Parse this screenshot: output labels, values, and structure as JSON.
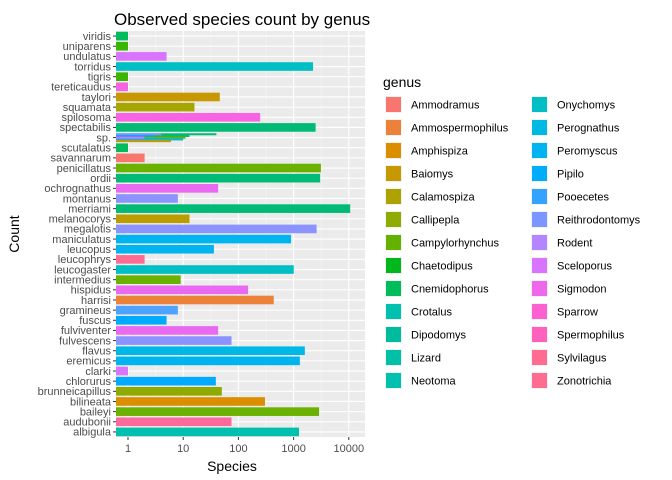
{
  "chart_data": {
    "type": "bar",
    "orientation": "horizontal",
    "title": "Observed species count by genus",
    "xlabel": "Species",
    "ylabel": "Count",
    "x_scale": "log10",
    "x_ticks": [
      "1",
      "10",
      "100",
      "1000",
      "10000"
    ],
    "xlim": [
      0.55,
      16000
    ],
    "grid": true,
    "legend_position": "right",
    "legend_title": "genus",
    "genera": [
      {
        "name": "Ammodramus",
        "color": "#F8766D"
      },
      {
        "name": "Ammospermophilus",
        "color": "#EC8239"
      },
      {
        "name": "Amphispiza",
        "color": "#DB8E00"
      },
      {
        "name": "Baiomys",
        "color": "#C79800"
      },
      {
        "name": "Calamospiza",
        "color": "#AEA200"
      },
      {
        "name": "Callipepla",
        "color": "#8FAA00"
      },
      {
        "name": "Campylorhynchus",
        "color": "#64B200"
      },
      {
        "name": "Chaetodipus",
        "color": "#00B81B"
      },
      {
        "name": "Cnemidophorus",
        "color": "#00BD5C"
      },
      {
        "name": "Crotalus",
        "color": "#00C0AF"
      },
      {
        "name": "Dipodomys",
        "color": "#00BC9F"
      },
      {
        "name": "Lizard",
        "color": "#00C1A7"
      },
      {
        "name": "Neotoma",
        "color": "#00C0AF"
      },
      {
        "name": "Onychomys",
        "color": "#00BFC4"
      },
      {
        "name": "Perognathus",
        "color": "#00B9E3"
      },
      {
        "name": "Peromyscus",
        "color": "#00B4EF"
      },
      {
        "name": "Pipilo",
        "color": "#00ADFA"
      },
      {
        "name": "Pooecetes",
        "color": "#35A2FF"
      },
      {
        "name": "Reithrodontomys",
        "color": "#7997FF"
      },
      {
        "name": "Rodent",
        "color": "#B385FF"
      },
      {
        "name": "Sceloporus",
        "color": "#D874FD"
      },
      {
        "name": "Sigmodon",
        "color": "#EF67EB"
      },
      {
        "name": "Sparrow",
        "color": "#FD61D1"
      },
      {
        "name": "Spermophilus",
        "color": "#FF62BC"
      },
      {
        "name": "Sylvilagus",
        "color": "#FF6C91"
      },
      {
        "name": "Zonotrichia",
        "color": "#FF6C91"
      }
    ],
    "categories": [
      "albigula",
      "audubonii",
      "baileyi",
      "bilineata",
      "brunneicapillus",
      "chlorurus",
      "clarki",
      "eremicus",
      "flavus",
      "fulvescens",
      "fulviventer",
      "fuscus",
      "gramineus",
      "harrisi",
      "hispidus",
      "intermedius",
      "leucogaster",
      "leucophrys",
      "leucopus",
      "maniculatus",
      "megalotis",
      "melanocorys",
      "merriami",
      "montanus",
      "ochrognathus",
      "ordii",
      "penicillatus",
      "savannarum",
      "scutalatus",
      "sp.",
      "spectabilis",
      "spilosoma",
      "squamata",
      "taylori",
      "tereticaudus",
      "tigris",
      "torridus",
      "undulatus",
      "uniparens",
      "viridis"
    ],
    "bars": [
      {
        "species": "albigula",
        "count": 1252,
        "genus": "Neotoma",
        "color": "#00BFAF"
      },
      {
        "species": "audubonii",
        "count": 75,
        "genus": "Sylvilagus",
        "color": "#FC6A9B"
      },
      {
        "species": "baileyi",
        "count": 2891,
        "genus": "Chaetodipus",
        "color": "#6BB100"
      },
      {
        "species": "bilineata",
        "count": 303,
        "genus": "Amphispiza",
        "color": "#DB8E00"
      },
      {
        "species": "brunneicapillus",
        "count": 50,
        "genus": "Campylorhynchus",
        "color": "#8FAA00"
      },
      {
        "species": "chlorurus",
        "count": 39,
        "genus": "Pipilo",
        "color": "#00ABFD"
      },
      {
        "species": "clarki",
        "count": 1,
        "genus": "Sceloporus",
        "color": "#D874FD"
      },
      {
        "species": "eremicus",
        "count": 1299,
        "genus": "Peromyscus",
        "color": "#00B4EF"
      },
      {
        "species": "flavus",
        "count": 1597,
        "genus": "Perognathus",
        "color": "#00B8E5"
      },
      {
        "species": "fulvescens",
        "count": 75,
        "genus": "Reithrodontomys",
        "color": "#8B93FF"
      },
      {
        "species": "fulviventer",
        "count": 43,
        "genus": "Sigmodon",
        "color": "#E96AF0"
      },
      {
        "species": "fuscus",
        "count": 5,
        "genus": "Pipilo",
        "color": "#00ABFD"
      },
      {
        "species": "gramineus",
        "count": 8,
        "genus": "Pooecetes",
        "color": "#4DA3FF"
      },
      {
        "species": "harrisi",
        "count": 437,
        "genus": "Ammospermophilus",
        "color": "#EC8239"
      },
      {
        "species": "hispidus",
        "count": 150,
        "genus": "Sigmodon",
        "color": "#E96AF0"
      },
      {
        "species": "intermedius",
        "count": 9,
        "genus": "Chaetodipus",
        "color": "#6BB100"
      },
      {
        "species": "leucogaster",
        "count": 1006,
        "genus": "Onychomys",
        "color": "#00BFC4"
      },
      {
        "species": "leucophrys",
        "count": 2,
        "genus": "Zonotrichia",
        "color": "#FF6C91"
      },
      {
        "species": "leucopus",
        "count": 36,
        "genus": "Peromyscus",
        "color": "#00B4EF"
      },
      {
        "species": "maniculatus",
        "count": 899,
        "genus": "Peromyscus",
        "color": "#00B4EF"
      },
      {
        "species": "megalotis",
        "count": 2609,
        "genus": "Reithrodontomys",
        "color": "#8B93FF"
      },
      {
        "species": "melanocorys",
        "count": 13,
        "genus": "Calamospiza",
        "color": "#BC9D00"
      },
      {
        "species": "merriami",
        "count": 10596,
        "genus": "Dipodomys",
        "color": "#00BA75"
      },
      {
        "species": "montanus",
        "count": 8,
        "genus": "Reithrodontomys",
        "color": "#8B93FF"
      },
      {
        "species": "ochrognathus",
        "count": 43,
        "genus": "Sigmodon",
        "color": "#E96AF0"
      },
      {
        "species": "ordii",
        "count": 3027,
        "genus": "Dipodomys",
        "color": "#00BA75"
      },
      {
        "species": "penicillatus",
        "count": 3123,
        "genus": "Chaetodipus",
        "color": "#6BB100"
      },
      {
        "species": "savannarum",
        "count": 2,
        "genus": "Ammodramus",
        "color": "#F8766D"
      },
      {
        "species": "scutalatus",
        "count": 1,
        "genus": "Crotalus",
        "color": "#00BC5C"
      },
      {
        "species": "spectabilis",
        "count": 2504,
        "genus": "Dipodomys",
        "color": "#00BA75"
      },
      {
        "species": "spilosoma",
        "count": 248,
        "genus": "Spermophilus",
        "color": "#F763E0"
      },
      {
        "species": "squamata",
        "count": 16,
        "genus": "Callipepla",
        "color": "#A7A600"
      },
      {
        "species": "taylori",
        "count": 46,
        "genus": "Baiomys",
        "color": "#C79800"
      },
      {
        "species": "tereticaudus",
        "count": 1,
        "genus": "Spermophilus",
        "color": "#F763E0"
      },
      {
        "species": "tigris",
        "count": 1,
        "genus": "Cnemidophorus",
        "color": "#3AB600"
      },
      {
        "species": "torridus",
        "count": 2249,
        "genus": "Onychomys",
        "color": "#00BFC4"
      },
      {
        "species": "undulatus",
        "count": 5,
        "genus": "Sceloporus",
        "color": "#D874FD"
      },
      {
        "species": "uniparens",
        "count": 1,
        "genus": "Cnemidophorus",
        "color": "#3AB600"
      },
      {
        "species": "viridis",
        "count": 1,
        "genus": "Crotalus",
        "color": "#00BC5C"
      }
    ],
    "sp_segments": [
      {
        "count": 40,
        "color": "#00BA75"
      },
      {
        "count": 13,
        "color": "#00BA75"
      },
      {
        "count": 11,
        "color": "#6BB100"
      },
      {
        "count": 10,
        "color": "#00B8E5"
      },
      {
        "count": 6,
        "color": "#C79800"
      },
      {
        "count": 4,
        "color": "#8B93FF"
      },
      {
        "count": 3,
        "color": "#00ABFD"
      },
      {
        "count": 2,
        "color": "#E96AF0"
      }
    ]
  }
}
